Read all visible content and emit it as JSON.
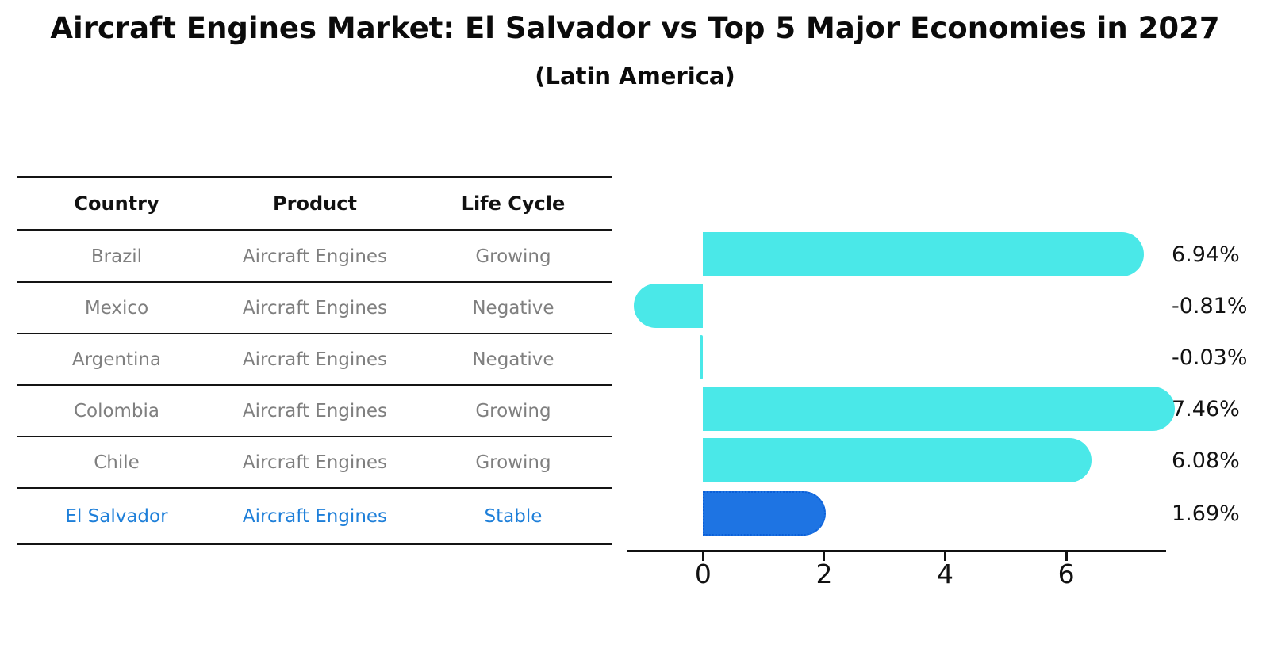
{
  "title": "Aircraft Engines Market: El Salvador vs Top 5 Major Economies in 2027",
  "subtitle": "(Latin America)",
  "accent_colors": {
    "bar_cyan": "#4ae8e8",
    "bar_highlight_blue": "#1e74e3",
    "highlight_border_blue": "#0b5fd8",
    "highlight_text_blue": "#1e7fd9",
    "table_text_gray": "#7f7f7f",
    "line_black": "#111111"
  },
  "table": {
    "headers": [
      "Country",
      "Product",
      "Life Cycle"
    ],
    "rows": [
      {
        "country": "Brazil",
        "product": "Aircraft Engines",
        "life_cycle": "Growing",
        "highlighted": false
      },
      {
        "country": "Mexico",
        "product": "Aircraft Engines",
        "life_cycle": "Negative",
        "highlighted": false
      },
      {
        "country": "Argentina",
        "product": "Aircraft Engines",
        "life_cycle": "Negative",
        "highlighted": false
      },
      {
        "country": "Colombia",
        "product": "Aircraft Engines",
        "life_cycle": "Growing",
        "highlighted": false
      },
      {
        "country": "Chile",
        "product": "Aircraft Engines",
        "life_cycle": "Growing",
        "highlighted": false
      },
      {
        "country": "El Salvador",
        "product": "Aircraft Engines",
        "life_cycle": "Stable",
        "highlighted": true
      }
    ]
  },
  "chart_data": {
    "type": "bar",
    "orientation": "horizontal",
    "title": "Aircraft Engines Market: El Salvador vs Top 5 Major Economies in 2027",
    "subtitle": "(Latin America)",
    "categories": [
      "Brazil",
      "Mexico",
      "Argentina",
      "Colombia",
      "Chile",
      "El Salvador"
    ],
    "values": [
      6.94,
      -0.81,
      -0.03,
      7.46,
      6.08,
      1.69
    ],
    "value_labels": [
      "6.94%",
      "-0.81%",
      "-0.03%",
      "7.46%",
      "6.08%",
      "1.69%"
    ],
    "highlight_index": 5,
    "xlabel": "",
    "ylabel": "",
    "xticks": [
      0,
      2,
      4,
      6
    ],
    "xtick_labels": [
      "0",
      "2",
      "4",
      "6"
    ],
    "xlim": [
      -1.25,
      7.65
    ],
    "grid": false,
    "legend": false
  }
}
